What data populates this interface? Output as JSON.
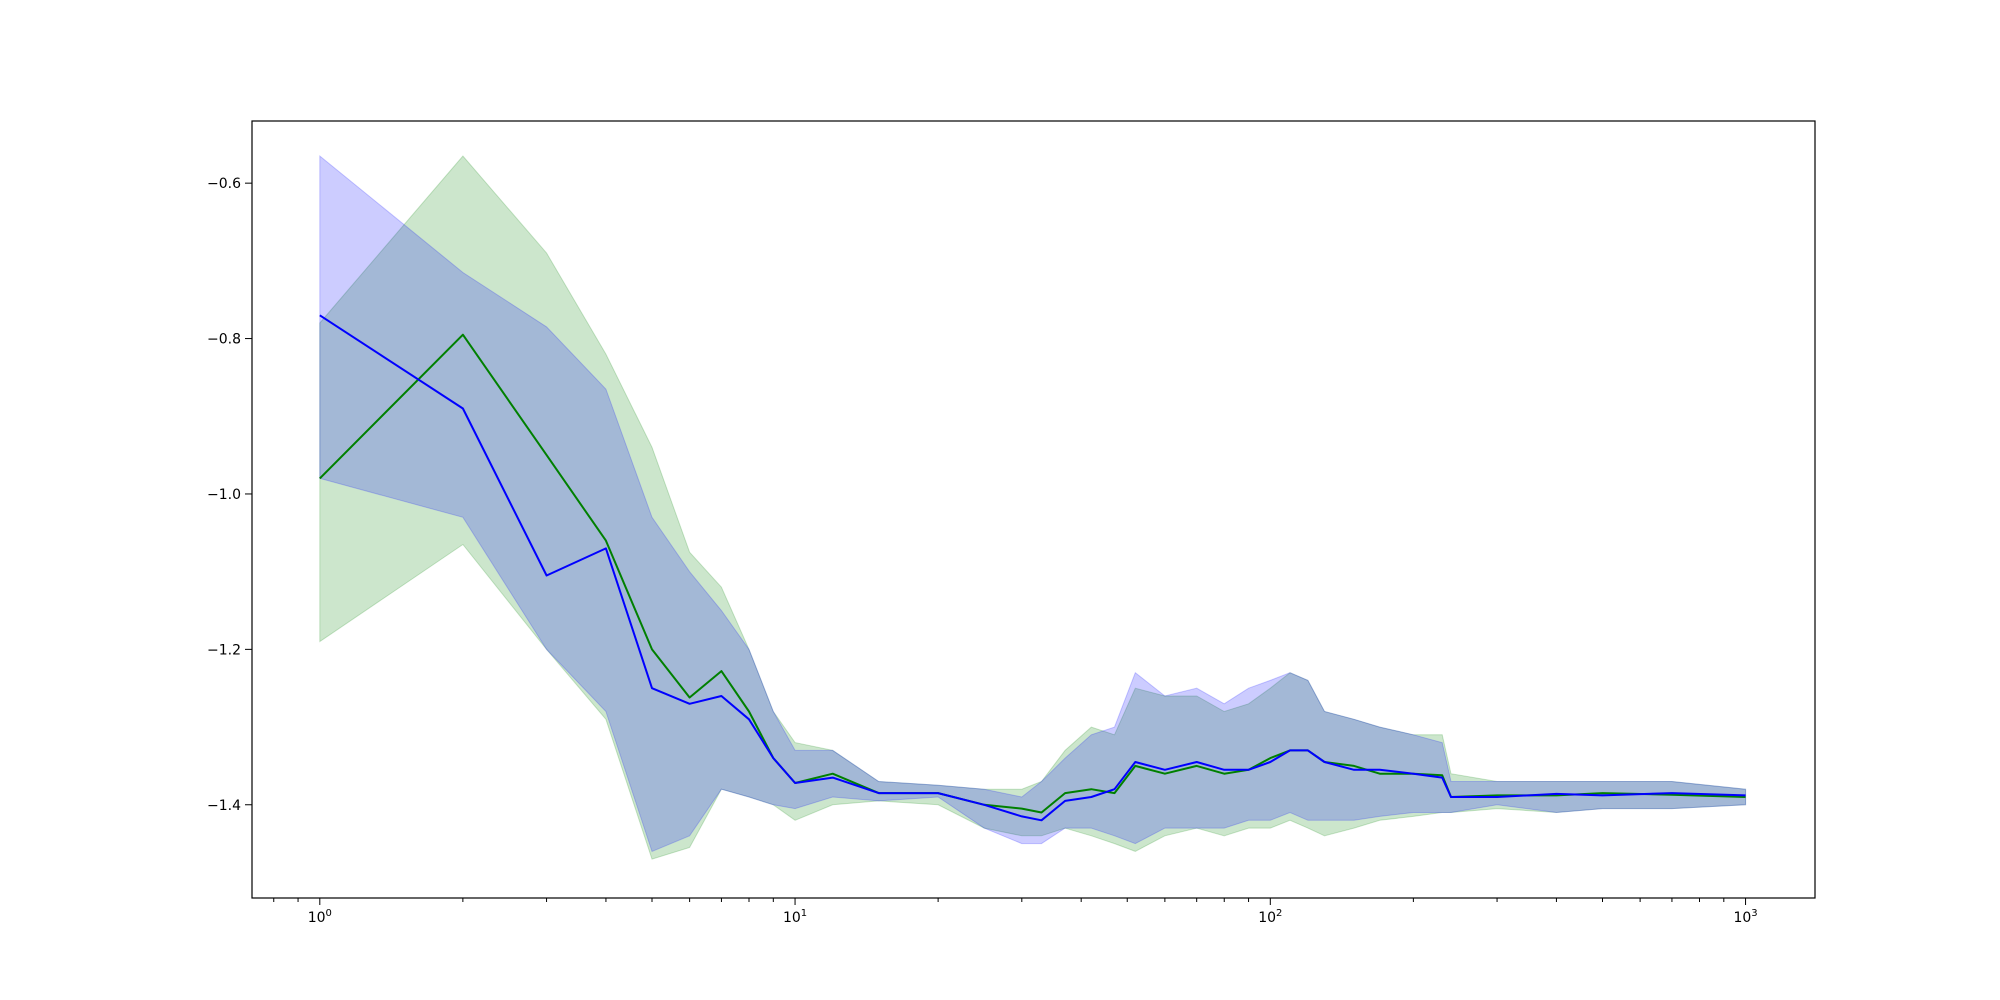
{
  "chart_data": {
    "type": "line",
    "title": "",
    "xlabel": "",
    "ylabel": "",
    "x_scale": "log",
    "xlim": [
      0.72,
      1400
    ],
    "ylim": [
      -1.52,
      -0.52
    ],
    "grid": false,
    "x_ticks": [
      {
        "value": 1,
        "base": "10",
        "exp": "0"
      },
      {
        "value": 10,
        "base": "10",
        "exp": "1"
      },
      {
        "value": 100,
        "base": "10",
        "exp": "2"
      },
      {
        "value": 1000,
        "base": "10",
        "exp": "3"
      }
    ],
    "y_ticks": [
      {
        "value": -0.6,
        "label": "−0.6"
      },
      {
        "value": -0.8,
        "label": "−0.8"
      },
      {
        "value": -1.0,
        "label": "−1.0"
      },
      {
        "value": -1.2,
        "label": "−1.2"
      },
      {
        "value": -1.4,
        "label": "−1.4"
      }
    ],
    "series": [
      {
        "color": "#008000",
        "band_color": "#008000",
        "band_opacity": 0.2,
        "x": [
          1,
          2,
          3,
          4,
          5,
          6,
          7,
          8,
          9,
          10,
          12,
          15,
          20,
          25,
          30,
          33,
          37,
          42,
          47,
          52,
          60,
          70,
          80,
          90,
          100,
          110,
          120,
          130,
          150,
          170,
          200,
          230,
          240,
          300,
          400,
          500,
          700,
          1000
        ],
        "y": [
          -0.98,
          -0.795,
          -0.95,
          -1.06,
          -1.2,
          -1.262,
          -1.228,
          -1.28,
          -1.34,
          -1.372,
          -1.36,
          -1.385,
          -1.385,
          -1.4,
          -1.405,
          -1.41,
          -1.385,
          -1.38,
          -1.385,
          -1.35,
          -1.36,
          -1.35,
          -1.36,
          -1.355,
          -1.34,
          -1.33,
          -1.33,
          -1.345,
          -1.35,
          -1.36,
          -1.36,
          -1.362,
          -1.39,
          -1.388,
          -1.388,
          -1.385,
          -1.387,
          -1.39
        ],
        "lower": [
          -1.19,
          -1.065,
          -1.2,
          -1.29,
          -1.47,
          -1.455,
          -1.38,
          -1.39,
          -1.4,
          -1.42,
          -1.4,
          -1.395,
          -1.4,
          -1.43,
          -1.44,
          -1.44,
          -1.43,
          -1.44,
          -1.45,
          -1.46,
          -1.44,
          -1.43,
          -1.44,
          -1.43,
          -1.43,
          -1.42,
          -1.43,
          -1.44,
          -1.43,
          -1.42,
          -1.415,
          -1.41,
          -1.41,
          -1.405,
          -1.41,
          -1.405,
          -1.405,
          -1.4
        ],
        "upper": [
          -0.78,
          -0.565,
          -0.69,
          -0.82,
          -0.94,
          -1.075,
          -1.12,
          -1.2,
          -1.28,
          -1.32,
          -1.33,
          -1.37,
          -1.375,
          -1.38,
          -1.38,
          -1.37,
          -1.33,
          -1.3,
          -1.31,
          -1.25,
          -1.26,
          -1.26,
          -1.28,
          -1.27,
          -1.25,
          -1.23,
          -1.24,
          -1.28,
          -1.29,
          -1.3,
          -1.31,
          -1.31,
          -1.36,
          -1.37,
          -1.37,
          -1.37,
          -1.37,
          -1.38
        ]
      },
      {
        "color": "#0000ff",
        "band_color": "#0000ff",
        "band_opacity": 0.2,
        "x": [
          1,
          2,
          3,
          4,
          5,
          6,
          7,
          8,
          9,
          10,
          12,
          15,
          20,
          25,
          30,
          33,
          37,
          42,
          47,
          52,
          60,
          70,
          80,
          90,
          100,
          110,
          120,
          130,
          150,
          170,
          200,
          230,
          240,
          300,
          400,
          500,
          700,
          1000
        ],
        "y": [
          -0.77,
          -0.89,
          -1.105,
          -1.07,
          -1.25,
          -1.27,
          -1.26,
          -1.29,
          -1.34,
          -1.372,
          -1.365,
          -1.385,
          -1.385,
          -1.4,
          -1.415,
          -1.42,
          -1.395,
          -1.39,
          -1.38,
          -1.345,
          -1.355,
          -1.345,
          -1.355,
          -1.355,
          -1.345,
          -1.33,
          -1.33,
          -1.345,
          -1.355,
          -1.355,
          -1.36,
          -1.365,
          -1.39,
          -1.39,
          -1.386,
          -1.388,
          -1.385,
          -1.388
        ],
        "lower": [
          -0.98,
          -1.03,
          -1.2,
          -1.28,
          -1.46,
          -1.44,
          -1.38,
          -1.39,
          -1.4,
          -1.405,
          -1.39,
          -1.395,
          -1.39,
          -1.43,
          -1.45,
          -1.45,
          -1.43,
          -1.43,
          -1.44,
          -1.45,
          -1.43,
          -1.43,
          -1.43,
          -1.42,
          -1.42,
          -1.41,
          -1.42,
          -1.42,
          -1.42,
          -1.415,
          -1.41,
          -1.41,
          -1.41,
          -1.4,
          -1.41,
          -1.405,
          -1.405,
          -1.4
        ],
        "upper": [
          -0.565,
          -0.715,
          -0.785,
          -0.865,
          -1.03,
          -1.1,
          -1.15,
          -1.2,
          -1.28,
          -1.33,
          -1.33,
          -1.37,
          -1.375,
          -1.38,
          -1.39,
          -1.37,
          -1.34,
          -1.31,
          -1.3,
          -1.23,
          -1.26,
          -1.25,
          -1.27,
          -1.25,
          -1.24,
          -1.23,
          -1.24,
          -1.28,
          -1.29,
          -1.3,
          -1.31,
          -1.32,
          -1.37,
          -1.37,
          -1.37,
          -1.37,
          -1.37,
          -1.38
        ]
      }
    ]
  }
}
